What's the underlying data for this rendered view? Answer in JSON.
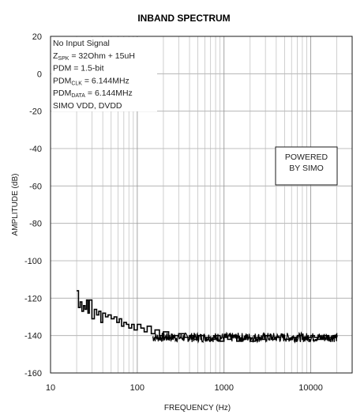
{
  "chart_data": {
    "type": "line",
    "title": "INBAND SPECTRUM",
    "xlabel": "FREQUENCY (Hz)",
    "ylabel": "AMPLITUDE (dB)",
    "xscale": "log",
    "xlim": [
      10,
      30000
    ],
    "ylim": [
      -160,
      20
    ],
    "xticks": [
      10,
      100,
      1000,
      10000
    ],
    "xtick_labels": [
      "10",
      "100",
      "1000",
      "10000"
    ],
    "yticks": [
      20,
      0,
      -20,
      -40,
      -60,
      -80,
      -100,
      -120,
      -140,
      -160
    ],
    "ytick_labels": [
      "20",
      "0",
      "-20",
      "-40",
      "-60",
      "-80",
      "-100",
      "-120",
      "-140",
      "-160"
    ],
    "grid": true,
    "annotations": {
      "conditions": [
        {
          "main": "No Input Signal"
        },
        {
          "main": "Z",
          "sub": "SPK",
          "rest": " = 32Ohm + 15uH"
        },
        {
          "main": "PDM = 1.5-bit"
        },
        {
          "main": "PDM",
          "sub": "CLK",
          "rest": " = 6.144MHz"
        },
        {
          "main": "PDM",
          "sub": "DATA",
          "rest": " = 6.144MHz"
        },
        {
          "main": "SIMO VDD, DVDD"
        }
      ],
      "badge": [
        "POWERED",
        "BY SIMO"
      ]
    },
    "series": [
      {
        "color": "#000000",
        "x": [
          20,
          21,
          22,
          23,
          24,
          25,
          26,
          27,
          28,
          30,
          32,
          34,
          36,
          38,
          40,
          43,
          46,
          50,
          54,
          58,
          62,
          66,
          70,
          75,
          80,
          86,
          92,
          100,
          110,
          120,
          130,
          145,
          160,
          180,
          200,
          230,
          260,
          300,
          350,
          400,
          450,
          500,
          600,
          700,
          800,
          900,
          1000,
          1100,
          1200,
          1400,
          1600,
          1800,
          2000,
          2300,
          2600,
          3000,
          3500,
          4000,
          4500,
          5000,
          6000,
          7000,
          8000,
          9000,
          10000,
          11000,
          12000,
          14000,
          16000,
          18000,
          20000
        ],
        "y": [
          -116,
          -125,
          -122,
          -127,
          -124,
          -126,
          -121,
          -128,
          -121,
          -131,
          -126,
          -129,
          -127,
          -133,
          -128,
          -130,
          -129,
          -131,
          -130,
          -133,
          -131,
          -135,
          -133,
          -134,
          -136,
          -134,
          -137,
          -134,
          -136,
          -138,
          -135,
          -139,
          -137,
          -140,
          -138,
          -141,
          -140,
          -139,
          -141,
          -140,
          -142,
          -140,
          -141,
          -142,
          -140,
          -143,
          -141,
          -142,
          -140,
          -143,
          -142,
          -141,
          -143,
          -141,
          -142,
          -140,
          -142,
          -141,
          -140,
          -142,
          -141,
          -140,
          -142,
          -141,
          -140,
          -141,
          -142,
          -140,
          -141,
          -140,
          -141
        ]
      }
    ]
  }
}
